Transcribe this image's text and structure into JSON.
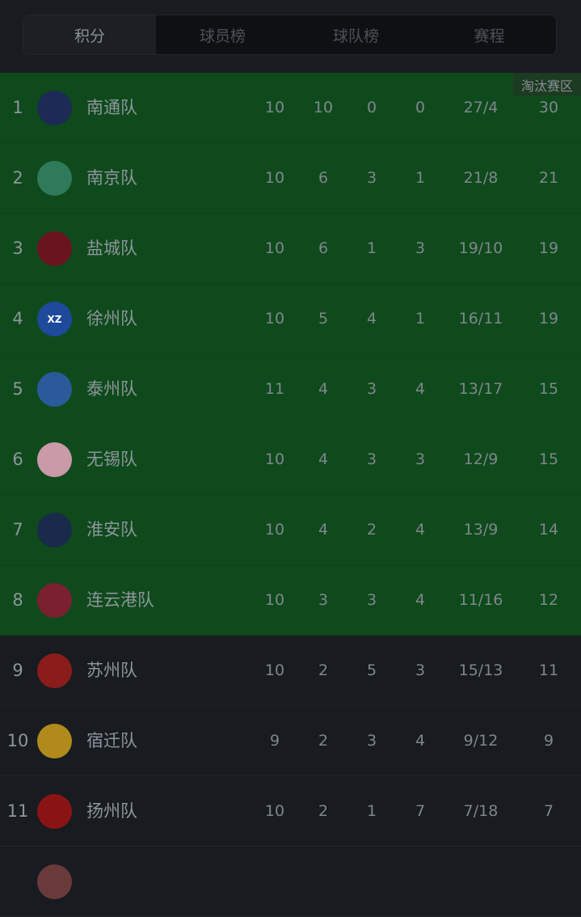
{
  "tabs": [
    {
      "label": "积分",
      "active": true
    },
    {
      "label": "球员榜"
    },
    {
      "label": "球队榜"
    },
    {
      "label": "赛程"
    }
  ],
  "zone_label": "淘汰赛区",
  "colors": {
    "zone": "#0f4a1c",
    "background": "#181b20"
  },
  "teams": [
    {
      "rank": "1",
      "name": "南通队",
      "played": "10",
      "won": "10",
      "drawn": "0",
      "lost": "0",
      "goals": "27/4",
      "points": "30",
      "zone": true,
      "logo_color": "#1c2a55"
    },
    {
      "rank": "2",
      "name": "南京队",
      "played": "10",
      "won": "6",
      "drawn": "3",
      "lost": "1",
      "goals": "21/8",
      "points": "21",
      "zone": true,
      "logo_color": "#2f7a5a"
    },
    {
      "rank": "3",
      "name": "盐城队",
      "played": "10",
      "won": "6",
      "drawn": "1",
      "lost": "3",
      "goals": "19/10",
      "points": "19",
      "zone": true,
      "logo_color": "#6a1420"
    },
    {
      "rank": "4",
      "name": "徐州队",
      "played": "10",
      "won": "5",
      "drawn": "4",
      "lost": "1",
      "goals": "16/11",
      "points": "19",
      "zone": true,
      "logo_color": "#1d4a9a",
      "logo_text": "XZ"
    },
    {
      "rank": "5",
      "name": "泰州队",
      "played": "11",
      "won": "4",
      "drawn": "3",
      "lost": "4",
      "goals": "13/17",
      "points": "15",
      "zone": true,
      "logo_color": "#2a5a9a"
    },
    {
      "rank": "6",
      "name": "无锡队",
      "played": "10",
      "won": "4",
      "drawn": "3",
      "lost": "3",
      "goals": "12/9",
      "points": "15",
      "zone": true,
      "logo_color": "#c99aa8"
    },
    {
      "rank": "7",
      "name": "淮安队",
      "played": "10",
      "won": "4",
      "drawn": "2",
      "lost": "4",
      "goals": "13/9",
      "points": "14",
      "zone": true,
      "logo_color": "#1a2a4a"
    },
    {
      "rank": "8",
      "name": "连云港队",
      "played": "10",
      "won": "3",
      "drawn": "3",
      "lost": "4",
      "goals": "11/16",
      "points": "12",
      "zone": true,
      "logo_color": "#7a2030"
    },
    {
      "rank": "9",
      "name": "苏州队",
      "played": "10",
      "won": "2",
      "drawn": "5",
      "lost": "3",
      "goals": "15/13",
      "points": "11",
      "zone": false,
      "logo_color": "#8a1c1c"
    },
    {
      "rank": "10",
      "name": "宿迁队",
      "played": "9",
      "won": "2",
      "drawn": "3",
      "lost": "4",
      "goals": "9/12",
      "points": "9",
      "zone": false,
      "logo_color": "#b08a1a"
    },
    {
      "rank": "11",
      "name": "扬州队",
      "played": "10",
      "won": "2",
      "drawn": "1",
      "lost": "7",
      "goals": "7/18",
      "points": "7",
      "zone": false,
      "logo_color": "#8a1414"
    }
  ]
}
